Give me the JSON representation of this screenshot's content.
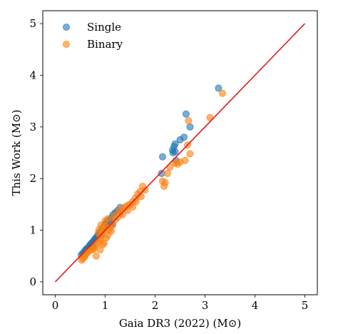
{
  "chart_data": {
    "type": "scatter",
    "xlabel": "Gaia DR3 (2022) (M⊙)",
    "ylabel": "This Work (M⊙)",
    "xlim": [
      -0.25,
      5.25
    ],
    "ylim": [
      -0.25,
      5.25
    ],
    "xticks": [
      0,
      1,
      2,
      3,
      4,
      5
    ],
    "yticks": [
      0,
      1,
      2,
      3,
      4,
      5
    ],
    "grid": false,
    "legend_position": "top-left",
    "reference_line": {
      "from": [
        0,
        0
      ],
      "to": [
        5,
        5
      ],
      "color": "#e41a1c"
    },
    "series": [
      {
        "name": "Single",
        "color": "#1f77b4",
        "points": [
          [
            0.52,
            0.52
          ],
          [
            0.55,
            0.55
          ],
          [
            0.58,
            0.58
          ],
          [
            0.6,
            0.61
          ],
          [
            0.62,
            0.63
          ],
          [
            0.64,
            0.65
          ],
          [
            0.66,
            0.66
          ],
          [
            0.68,
            0.69
          ],
          [
            0.7,
            0.72
          ],
          [
            0.72,
            0.74
          ],
          [
            0.74,
            0.76
          ],
          [
            0.76,
            0.78
          ],
          [
            0.78,
            0.81
          ],
          [
            0.8,
            0.83
          ],
          [
            0.82,
            0.86
          ],
          [
            0.84,
            0.88
          ],
          [
            0.86,
            0.9
          ],
          [
            0.88,
            0.93
          ],
          [
            0.9,
            0.96
          ],
          [
            0.92,
            0.99
          ],
          [
            0.94,
            1.02
          ],
          [
            0.96,
            1.05
          ],
          [
            0.98,
            1.08
          ],
          [
            1.0,
            1.11
          ],
          [
            1.02,
            1.14
          ],
          [
            1.05,
            1.17
          ],
          [
            1.08,
            1.2
          ],
          [
            1.12,
            1.24
          ],
          [
            1.16,
            1.3
          ],
          [
            1.2,
            1.34
          ],
          [
            1.25,
            1.38
          ],
          [
            1.3,
            1.44
          ],
          [
            1.1,
            1.1
          ],
          [
            1.15,
            1.12
          ],
          [
            0.75,
            0.68
          ],
          [
            0.7,
            0.65
          ],
          [
            2.15,
            2.42
          ],
          [
            2.13,
            2.1
          ],
          [
            2.35,
            2.55
          ],
          [
            2.38,
            2.62
          ],
          [
            2.4,
            2.67
          ],
          [
            2.36,
            2.5
          ],
          [
            2.4,
            2.52
          ],
          [
            2.5,
            2.75
          ],
          [
            2.58,
            2.8
          ],
          [
            2.62,
            3.25
          ],
          [
            2.7,
            3.0
          ],
          [
            2.42,
            2.35
          ],
          [
            3.27,
            3.75
          ]
        ]
      },
      {
        "name": "Binary",
        "color": "#ff7f0e",
        "points": [
          [
            0.53,
            0.42
          ],
          [
            0.55,
            0.45
          ],
          [
            0.58,
            0.48
          ],
          [
            0.6,
            0.5
          ],
          [
            0.63,
            0.55
          ],
          [
            0.65,
            0.58
          ],
          [
            0.68,
            0.6
          ],
          [
            0.72,
            0.63
          ],
          [
            0.75,
            0.62
          ],
          [
            0.78,
            0.65
          ],
          [
            0.8,
            0.7
          ],
          [
            0.82,
            0.5
          ],
          [
            0.85,
            0.75
          ],
          [
            0.88,
            0.8
          ],
          [
            0.9,
            0.85
          ],
          [
            0.92,
            0.9
          ],
          [
            0.94,
            0.95
          ],
          [
            0.96,
            1.0
          ],
          [
            0.98,
            1.05
          ],
          [
            1.0,
            1.08
          ],
          [
            0.95,
            0.72
          ],
          [
            0.9,
            0.62
          ],
          [
            0.98,
            0.75
          ],
          [
            1.02,
            0.85
          ],
          [
            1.05,
            0.9
          ],
          [
            1.08,
            1.0
          ],
          [
            1.1,
            1.05
          ],
          [
            1.15,
            1.1
          ],
          [
            1.2,
            1.2
          ],
          [
            1.25,
            1.25
          ],
          [
            1.3,
            1.32
          ],
          [
            1.35,
            1.42
          ],
          [
            1.4,
            1.45
          ],
          [
            1.45,
            1.48
          ],
          [
            1.5,
            1.5
          ],
          [
            1.55,
            1.55
          ],
          [
            1.6,
            1.62
          ],
          [
            1.65,
            1.7
          ],
          [
            1.7,
            1.75
          ],
          [
            1.72,
            1.65
          ],
          [
            1.75,
            1.85
          ],
          [
            1.8,
            1.78
          ],
          [
            1.55,
            1.45
          ],
          [
            1.45,
            1.38
          ],
          [
            1.35,
            1.3
          ],
          [
            1.0,
            1.18
          ],
          [
            1.05,
            1.22
          ],
          [
            0.92,
            1.1
          ],
          [
            1.12,
            0.98
          ],
          [
            0.86,
            0.95
          ],
          [
            0.88,
            1.02
          ],
          [
            1.18,
            1.28
          ],
          [
            1.28,
            1.38
          ],
          [
            1.62,
            1.55
          ],
          [
            2.15,
            1.95
          ],
          [
            2.2,
            1.92
          ],
          [
            2.18,
            1.85
          ],
          [
            2.25,
            2.1
          ],
          [
            2.3,
            2.22
          ],
          [
            2.4,
            2.3
          ],
          [
            2.45,
            2.28
          ],
          [
            2.6,
            2.35
          ],
          [
            2.65,
            2.65
          ],
          [
            2.67,
            3.12
          ],
          [
            2.7,
            2.48
          ],
          [
            2.5,
            2.32
          ],
          [
            3.1,
            3.18
          ],
          [
            3.35,
            3.65
          ]
        ]
      }
    ]
  }
}
